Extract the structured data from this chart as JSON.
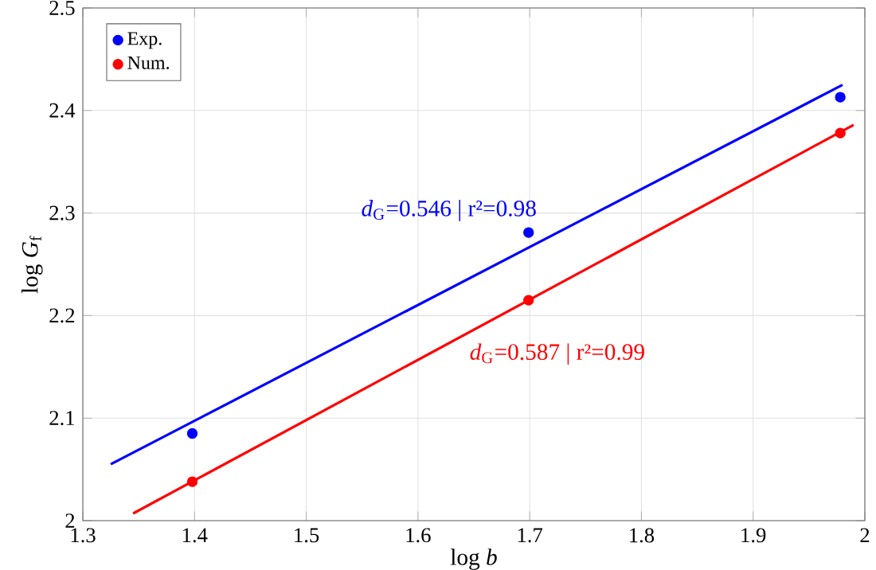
{
  "chart_data": {
    "type": "scatter",
    "xlabel": "log *b*",
    "ylabel": "log *G*$_{f}$",
    "xlim": [
      1.3,
      2
    ],
    "xticks": [
      1.3,
      1.4,
      1.5,
      1.6,
      1.7,
      1.8,
      1.9,
      2
    ],
    "ylim": [
      2,
      2.5
    ],
    "yticks": [
      2,
      2.1,
      2.2,
      2.3,
      2.4,
      2.5
    ],
    "grid": true,
    "legend": "top left",
    "x": [
      1.398,
      1.699,
      1.978
    ],
    "series": [
      {
        "name": "Exp.",
        "marker": "circle",
        "color": "#0000ff",
        "values": [
          2.085,
          2.281,
          2.413
        ]
      },
      {
        "name": "Num.",
        "marker": "circle",
        "color": "#ff0000",
        "values": [
          2.038,
          2.215,
          2.378
        ]
      },
      {
        "type": "line",
        "marker": "none",
        "color": "#0000ff",
        "x": [
          1.325,
          1.98
        ],
        "values": [
          2.055,
          2.425
        ]
      },
      {
        "type": "line",
        "marker": "none",
        "color": "#ff0000",
        "x": [
          1.345,
          1.99
        ],
        "values": [
          2.007,
          2.386
        ]
      }
    ],
    "annotations": [
      "*d*$_{G}$=0.546 | r²=0.98",
      "*d*$_{G}$=0.587 | r²=0.99"
    ]
  }
}
